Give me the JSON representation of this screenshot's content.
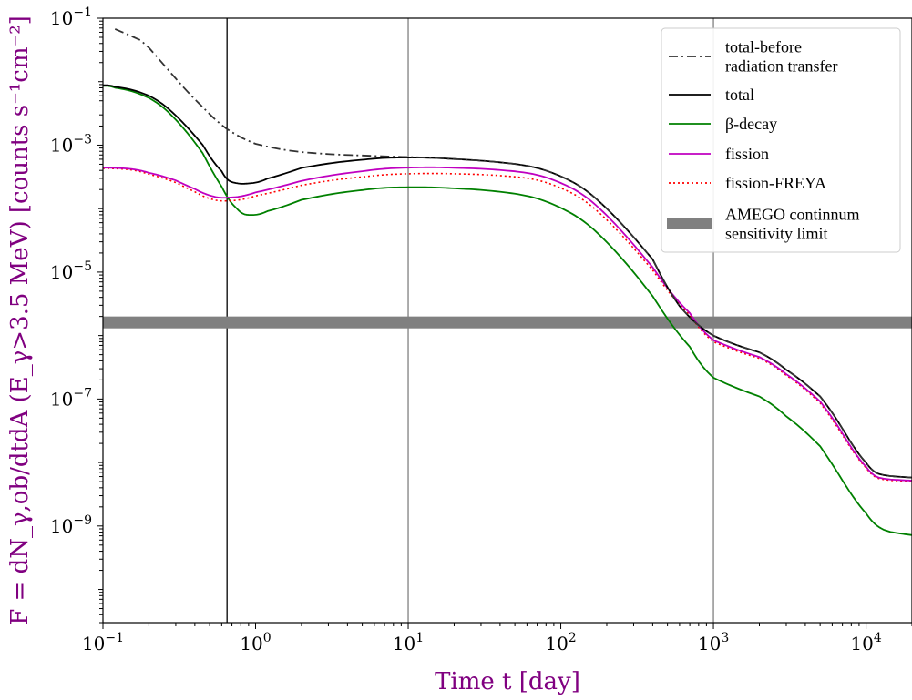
{
  "chart_data": {
    "type": "line",
    "xscale": "log",
    "yscale": "log",
    "xlim": [
      0.1,
      20000
    ],
    "ylim": [
      3e-11,
      0.1
    ],
    "xlabel": "Time t [day]",
    "ylabel": "F = dN_γ,ob/dtdA (E_γ>3.5 MeV) [counts s⁻¹cm⁻²]",
    "xticks": [
      {
        "base": "10",
        "exp": "−1",
        "value": 0.1
      },
      {
        "base": "10",
        "exp": "0",
        "value": 1
      },
      {
        "base": "10",
        "exp": "1",
        "value": 10
      },
      {
        "base": "10",
        "exp": "2",
        "value": 100
      },
      {
        "base": "10",
        "exp": "3",
        "value": 1000
      },
      {
        "base": "10",
        "exp": "4",
        "value": 10000
      }
    ],
    "yticks": [
      {
        "base": "10",
        "exp": "−1",
        "value": 0.1
      },
      {
        "base": "10",
        "exp": "−3",
        "value": 0.001
      },
      {
        "base": "10",
        "exp": "−5",
        "value": 1e-05
      },
      {
        "base": "10",
        "exp": "−7",
        "value": 1e-07
      },
      {
        "base": "10",
        "exp": "−9",
        "value": 1e-09
      }
    ],
    "vlines": [
      {
        "x": 0.65,
        "color": "#000000"
      },
      {
        "x": 10,
        "color": "#808080"
      },
      {
        "x": 1000,
        "color": "#808080"
      }
    ],
    "band": {
      "name": "AMEGO continnum sensitivity limit",
      "y_low": 1.3e-06,
      "y_high": 2e-06,
      "color": "#808080"
    },
    "series": [
      {
        "name": "total-before radiation transfer",
        "color": "#333333",
        "dash": "dashdot",
        "x": [
          0.12,
          0.2,
          0.3,
          0.45,
          0.65,
          1.0,
          2.0,
          5.0,
          10,
          20,
          50,
          100,
          200,
          400,
          600,
          1000,
          2000,
          3000,
          5000,
          7000,
          10000,
          13000,
          20000
        ],
        "y": [
          0.1,
          0.035,
          0.011,
          0.0038,
          0.0017,
          0.001,
          0.00075,
          0.00068,
          0.00065,
          0.00062,
          0.00052,
          0.00038,
          0.00012,
          1.5e-05,
          2.5e-06,
          9e-07,
          5.5e-07,
          3.2e-07,
          1.1e-07,
          3.8e-08,
          7.5e-09,
          6.3e-09,
          5.5e-09
        ]
      },
      {
        "name": "total",
        "color": "#000000",
        "dash": "solid",
        "x": [
          0.1,
          0.12,
          0.2,
          0.3,
          0.45,
          0.6,
          0.7,
          0.9,
          1.2,
          2.0,
          5.0,
          10,
          20,
          50,
          100,
          200,
          400,
          600,
          1000,
          2000,
          3000,
          5000,
          7000,
          10000,
          13000,
          20000
        ],
        "y": [
          0.0088,
          0.0088,
          0.0065,
          0.0032,
          0.001,
          0.00033,
          0.00025,
          0.00024,
          0.00028,
          0.00045,
          0.00062,
          0.00065,
          0.00062,
          0.00052,
          0.00038,
          0.00012,
          1.5e-05,
          2.5e-06,
          9e-07,
          5.5e-07,
          3.2e-07,
          1.1e-07,
          3.8e-08,
          7.5e-09,
          6.3e-09,
          5.5e-09
        ]
      },
      {
        "name": "β-decay",
        "color": "#008000",
        "dash": "solid",
        "x": [
          0.1,
          0.12,
          0.2,
          0.3,
          0.45,
          0.6,
          0.75,
          0.9,
          1.2,
          2.0,
          5.0,
          10,
          20,
          50,
          100,
          200,
          400,
          700,
          1000,
          2000,
          3000,
          5000,
          7000,
          10000,
          13000,
          20000
        ],
        "y": [
          0.0086,
          0.0086,
          0.006,
          0.0028,
          0.00075,
          0.0002,
          9e-05,
          7.5e-05,
          8.5e-05,
          0.00014,
          0.00021,
          0.00022,
          0.000215,
          0.00018,
          0.00012,
          3.6e-05,
          4e-06,
          5.5e-07,
          2e-07,
          1.1e-07,
          6e-08,
          1.8e-08,
          5.5e-09,
          1.3e-09,
          8.5e-10,
          6.5e-10
        ]
      },
      {
        "name": "fission",
        "color": "#c000c0",
        "dash": "solid",
        "x": [
          0.1,
          0.15,
          0.2,
          0.3,
          0.4,
          0.5,
          0.65,
          1.0,
          2.0,
          5.0,
          10,
          20,
          50,
          100,
          200,
          400,
          700,
          1000,
          2000,
          3000,
          5000,
          7000,
          10000,
          13000,
          20000
        ],
        "y": [
          0.00045,
          0.00043,
          0.00038,
          0.00028,
          0.0002,
          0.000158,
          0.00014,
          0.00017,
          0.00028,
          0.00041,
          0.00045,
          0.00045,
          0.0004,
          0.0003,
          9.5e-05,
          1.1e-05,
          1.9e-06,
          8e-07,
          4.5e-07,
          2.8e-07,
          9e-08,
          3.2e-08,
          6.5e-09,
          5.5e-09,
          5e-09
        ]
      },
      {
        "name": "fission-FREYA",
        "color": "#ff0000",
        "dash": "dotted",
        "x": [
          0.1,
          0.15,
          0.2,
          0.3,
          0.4,
          0.5,
          0.65,
          1.0,
          2.0,
          5.0,
          10,
          20,
          50,
          100,
          200,
          400,
          700,
          1000,
          2000,
          3000,
          5000,
          7000,
          10000,
          13000,
          20000
        ],
        "y": [
          0.00044,
          0.00042,
          0.00036,
          0.00026,
          0.00018,
          0.00014,
          0.000125,
          0.00015,
          0.00024,
          0.00033,
          0.00036,
          0.00036,
          0.00033,
          0.00025,
          8e-05,
          1e-05,
          1.8e-06,
          7.5e-07,
          4.3e-07,
          2.7e-07,
          8.5e-08,
          3e-08,
          6.3e-09,
          5.3e-09,
          4.9e-09
        ]
      }
    ],
    "legend": {
      "placement": "top-right",
      "entries": [
        {
          "lines": [
            "total-before",
            "radiation transfer"
          ],
          "series": "total-before radiation transfer",
          "kind": "line"
        },
        {
          "lines": [
            "total"
          ],
          "series": "total",
          "kind": "line"
        },
        {
          "lines": [
            "β-decay"
          ],
          "series": "β-decay",
          "kind": "line"
        },
        {
          "lines": [
            "fission"
          ],
          "series": "fission",
          "kind": "line"
        },
        {
          "lines": [
            "fission-FREYA"
          ],
          "series": "fission-FREYA",
          "kind": "line"
        },
        {
          "lines": [
            "AMEGO continnum",
            "sensitivity limit"
          ],
          "series": "AMEGO continnum sensitivity limit",
          "kind": "band"
        }
      ]
    }
  }
}
